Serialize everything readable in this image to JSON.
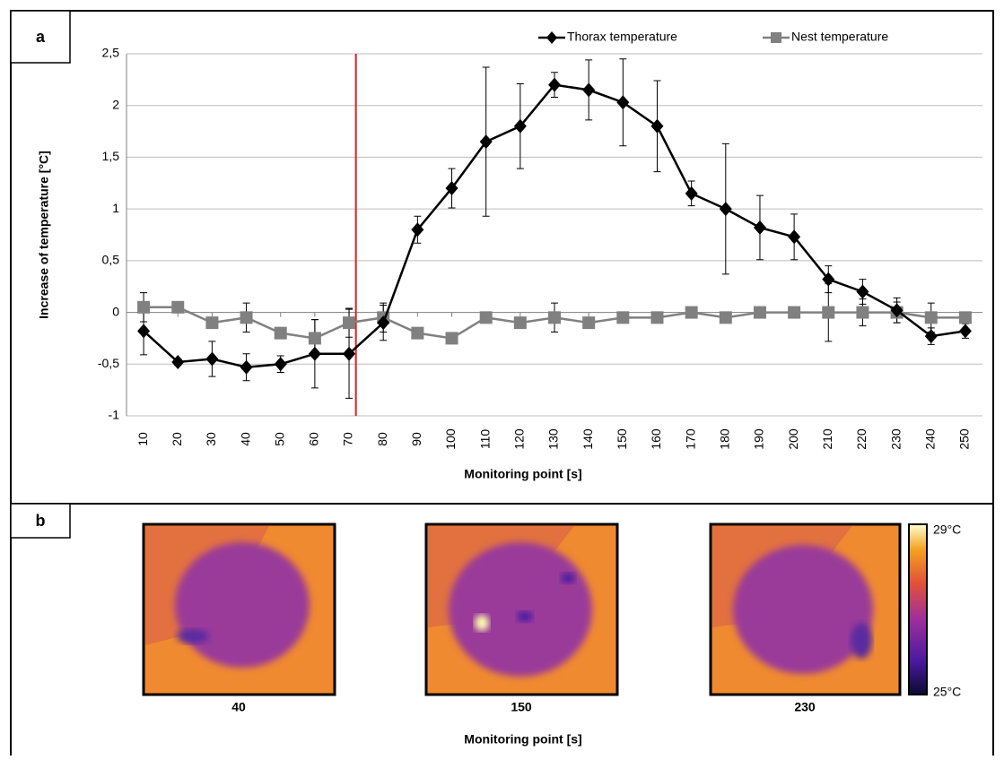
{
  "chart_data": {
    "type": "line",
    "panel_label": "a",
    "xlabel": "Monitoring point  [s]",
    "ylabel": "Increase of temperature [°C]",
    "x": [
      10,
      20,
      30,
      40,
      50,
      60,
      70,
      80,
      90,
      100,
      110,
      120,
      130,
      140,
      150,
      160,
      170,
      180,
      190,
      200,
      210,
      220,
      230,
      240,
      250
    ],
    "xlim": [
      5,
      255
    ],
    "xticks": [
      10,
      20,
      30,
      40,
      50,
      60,
      70,
      80,
      90,
      100,
      110,
      120,
      130,
      140,
      150,
      160,
      170,
      180,
      190,
      200,
      210,
      220,
      230,
      240,
      250
    ],
    "ylim": [
      -1,
      2.5
    ],
    "yticks": [
      -1,
      {
        "value": -0.5,
        "label": "-0,5"
      },
      0,
      {
        "value": 0.5,
        "label": "0,5"
      },
      1,
      {
        "value": 1.5,
        "label": "1,5"
      },
      2,
      {
        "value": 2.5,
        "label": "2,5"
      }
    ],
    "grid": true,
    "vline": {
      "x": 72,
      "color": "#e0201c"
    },
    "series": [
      {
        "name": "Nest temperature",
        "color": "#808080",
        "marker": "square",
        "values": [
          0.05,
          0.05,
          -0.1,
          -0.05,
          -0.2,
          -0.25,
          -0.1,
          -0.05,
          -0.2,
          -0.25,
          -0.05,
          -0.1,
          -0.05,
          -0.1,
          -0.05,
          -0.05,
          0,
          -0.05,
          0,
          0,
          0,
          0,
          0,
          -0.05,
          -0.05
        ],
        "errors": [
          0.14,
          0.05,
          0.05,
          0.14,
          0.05,
          0.18,
          0.14,
          0.14,
          0.05,
          0.02,
          0.03,
          0.05,
          0.14,
          0.05,
          0.02,
          0.05,
          0.05,
          0.02,
          0.05,
          0.02,
          0.28,
          0.13,
          0.1,
          0.14,
          0.05
        ]
      },
      {
        "name": "Thorax temperature",
        "color": "#000000",
        "marker": "diamond",
        "values": [
          -0.18,
          -0.48,
          -0.45,
          -0.53,
          -0.5,
          -0.4,
          -0.4,
          -0.1,
          0.8,
          1.2,
          1.65,
          1.8,
          2.2,
          2.15,
          2.03,
          1.8,
          1.15,
          1.0,
          0.82,
          0.73,
          0.32,
          0.2,
          0.02,
          -0.23,
          -0.18
        ],
        "errors": [
          0.23,
          0.03,
          0.17,
          0.13,
          0.08,
          0.33,
          0.43,
          0.17,
          0.13,
          0.19,
          0.72,
          0.41,
          0.12,
          0.29,
          0.42,
          0.44,
          0.12,
          0.63,
          0.31,
          0.22,
          0.13,
          0.12,
          0.12,
          0.08,
          0.07
        ]
      }
    ]
  },
  "figure_b": {
    "panel_label": "b",
    "images": [
      "40",
      "150",
      "230"
    ],
    "xlabel": "Monitoring point [s]",
    "scale_max": "29°C",
    "scale_min": "25°C"
  }
}
